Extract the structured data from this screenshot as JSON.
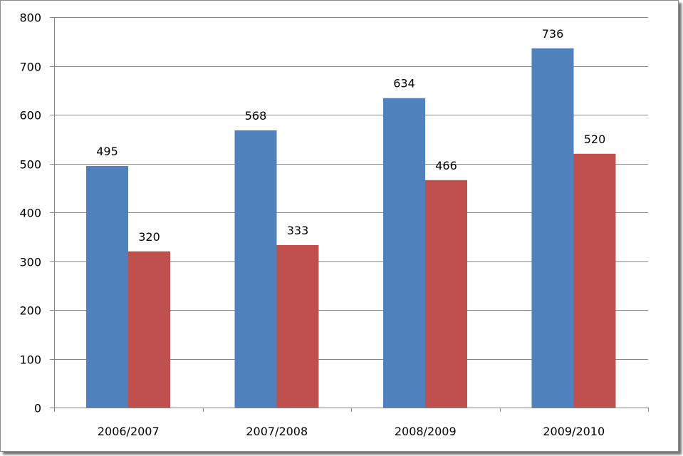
{
  "chart_data": {
    "type": "bar",
    "categories": [
      "2006/2007",
      "2007/2008",
      "2008/2009",
      "2009/2010"
    ],
    "series": [
      {
        "values": [
          495,
          568,
          634,
          736
        ],
        "color": "#4f81bd"
      },
      {
        "values": [
          320,
          333,
          466,
          520
        ],
        "color": "#c0504d"
      }
    ],
    "ylim": [
      0,
      800
    ],
    "yticks": [
      0,
      100,
      200,
      300,
      400,
      500,
      600,
      700,
      800
    ],
    "grid": true,
    "legend": "none",
    "data_labels": true
  }
}
